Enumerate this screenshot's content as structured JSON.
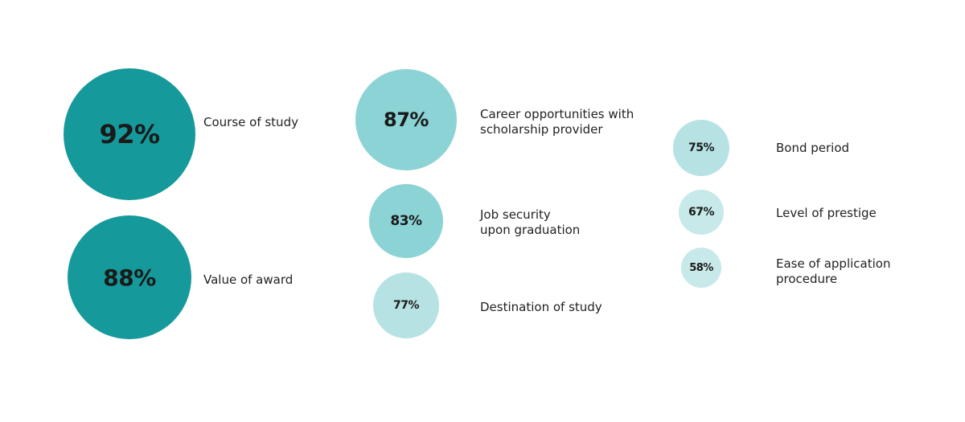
{
  "chart_data": {
    "type": "bubble",
    "title": "",
    "unit": "%",
    "items": [
      {
        "label": "Course of study",
        "value": 92,
        "color": "#15999A"
      },
      {
        "label": "Value of award",
        "value": 88,
        "color": "#15999A"
      },
      {
        "label": "Career opportunities with\nscholarship provider",
        "value": 87,
        "color": "#8CD3D5"
      },
      {
        "label": "Job security\nupon graduation",
        "value": 83,
        "color": "#8CD3D5"
      },
      {
        "label": "Destination of study",
        "value": 77,
        "color": "#B6E2E3"
      },
      {
        "label": "Bond period",
        "value": 75,
        "color": "#B6E2E3"
      },
      {
        "label": "Level of prestige",
        "value": 67,
        "color": "#C7E9E9"
      },
      {
        "label": "Ease of application\nprocedure",
        "value": 58,
        "color": "#C7E9E9"
      }
    ]
  }
}
